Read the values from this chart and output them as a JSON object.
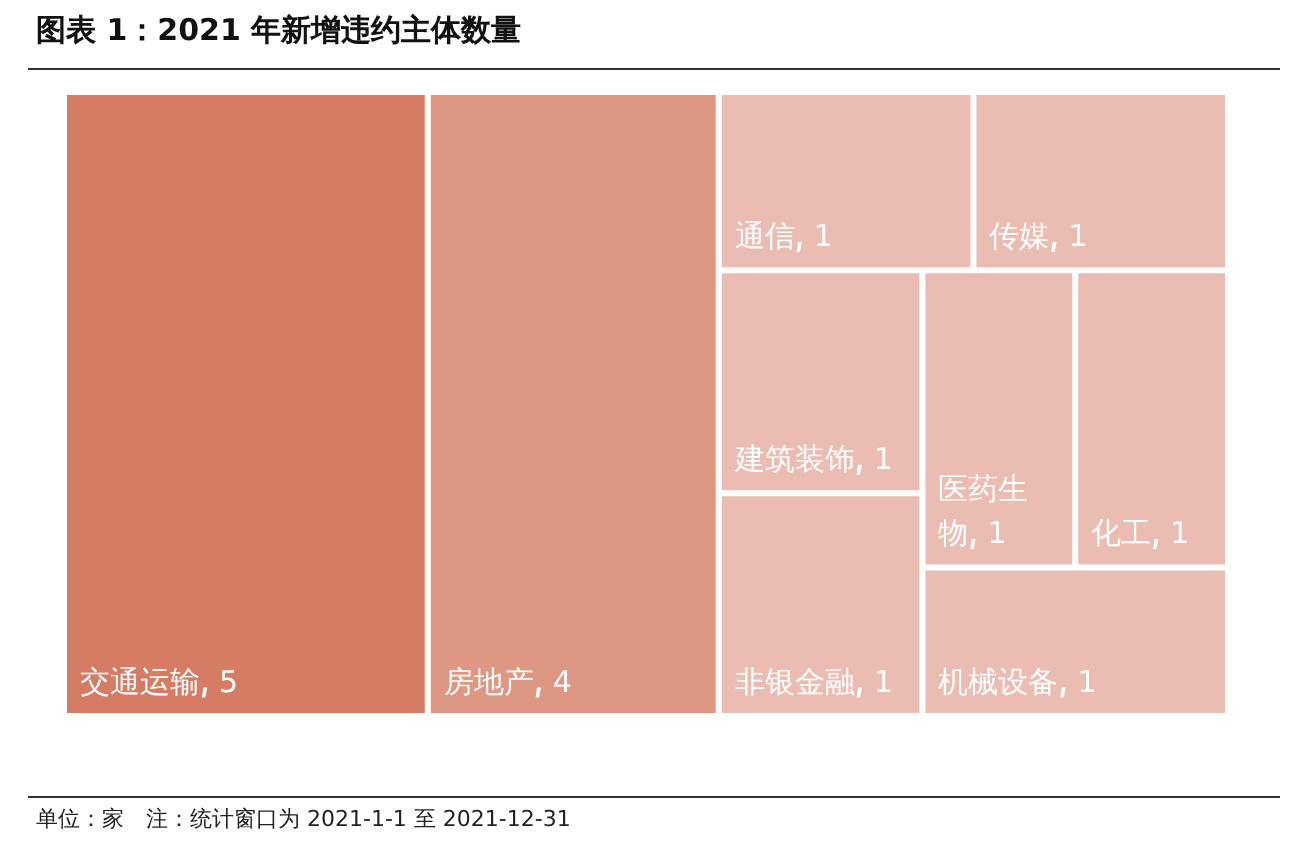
{
  "chart_data": {
    "type": "other",
    "title": "图表 1：2021 年新增违约主体数量",
    "categories": [
      "交通运输",
      "房地产",
      "通信",
      "传媒",
      "建筑装饰",
      "非银金融",
      "医药生物",
      "化工",
      "机械设备"
    ],
    "values": [
      5,
      4,
      1,
      1,
      1,
      1,
      1,
      1,
      1
    ],
    "colors": [
      "#d67c65",
      "#dd9783",
      "#ebbcb1",
      "#ebbcb1",
      "#ebbcb1",
      "#ebbcb1",
      "#ebbcb1",
      "#ebbcb1",
      "#ebbcb1"
    ],
    "data_labels": true,
    "annotations": [
      "单位：家　注：统计窗口为 2021-1-1 至 2021-12-31"
    ]
  }
}
